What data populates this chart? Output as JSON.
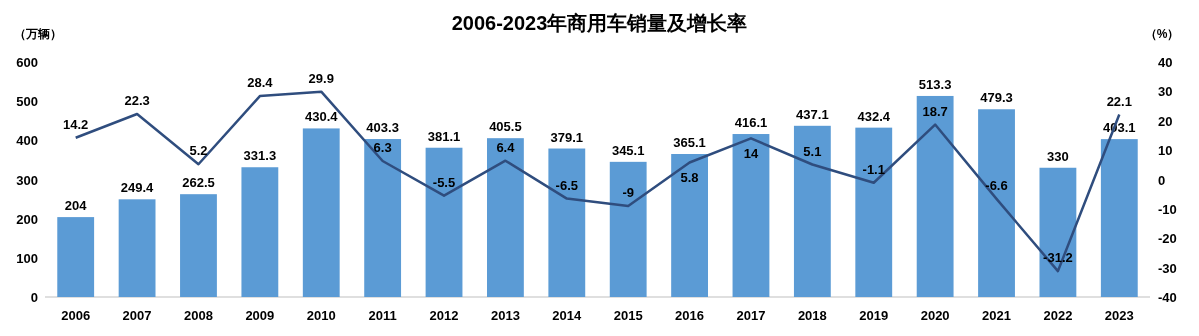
{
  "chart_data": {
    "type": "bar",
    "title": "2006-2023年商用车销量及增长率",
    "ylabel": "（万辆）",
    "y2label": "（%）",
    "categories": [
      "2006",
      "2007",
      "2008",
      "2009",
      "2010",
      "2011",
      "2012",
      "2013",
      "2014",
      "2015",
      "2016",
      "2017",
      "2018",
      "2019",
      "2020",
      "2021",
      "2022",
      "2023"
    ],
    "series": [
      {
        "color": "#5b9bd5",
        "values": [
          204,
          249.4,
          262.5,
          331.3,
          430.4,
          403.3,
          381.1,
          405.5,
          379.1,
          345.1,
          365.1,
          416.1,
          437.1,
          432.4,
          513.3,
          479.3,
          330,
          403.1
        ]
      },
      {
        "type": "line",
        "axis": "y2",
        "color": "#2f4d7e",
        "values": [
          14.2,
          22.3,
          5.2,
          28.4,
          29.9,
          6.3,
          -5.5,
          6.4,
          -6.5,
          -9,
          5.8,
          14,
          5.1,
          -1.1,
          18.7,
          -6.6,
          -31.2,
          22.1
        ]
      }
    ],
    "ylim": [
      0,
      600
    ],
    "yticks": [
      0,
      100,
      200,
      300,
      400,
      500,
      600
    ],
    "y2lim": [
      -40,
      40
    ],
    "y2ticks": [
      -40,
      -30,
      -20,
      -10,
      0,
      10,
      20,
      30,
      40
    ],
    "data_labels": true,
    "grid": false,
    "marker": "none"
  }
}
